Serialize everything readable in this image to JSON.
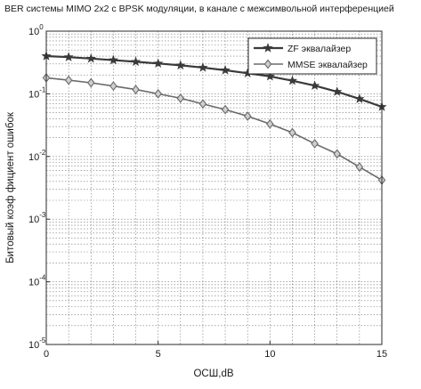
{
  "chart_data": {
    "type": "line",
    "title": "BER системы MIMO 2x2 с BPSK модуляции, в канале с межсимвольной интерференцией",
    "xlabel": "ОСШ,dB",
    "ylabel": "Битовый коэф фициент ошибок",
    "xlim": [
      0,
      15
    ],
    "ylim": [
      1e-05,
      1
    ],
    "yscale": "log",
    "grid": true,
    "legend_position": "top-right",
    "x_ticks": [
      0,
      5,
      10,
      15
    ],
    "y_ticks": [
      {
        "value": 1,
        "base": "10",
        "exp": "0"
      },
      {
        "value": 0.1,
        "base": "10",
        "exp": "-1"
      },
      {
        "value": 0.01,
        "base": "10",
        "exp": "-2"
      },
      {
        "value": 0.001,
        "base": "10",
        "exp": "-3"
      },
      {
        "value": 0.0001,
        "base": "10",
        "exp": "-4"
      },
      {
        "value": 1e-05,
        "base": "10",
        "exp": "-5"
      }
    ],
    "x": [
      0,
      1,
      2,
      3,
      4,
      5,
      6,
      7,
      8,
      9,
      10,
      11,
      12,
      13,
      14,
      15
    ],
    "series": [
      {
        "name": "ZF эквалайзер",
        "marker": "star",
        "color": "#3a3a3a",
        "values": [
          0.4,
          0.385,
          0.365,
          0.345,
          0.325,
          0.305,
          0.285,
          0.262,
          0.238,
          0.213,
          0.19,
          0.162,
          0.135,
          0.108,
          0.083,
          0.062
        ]
      },
      {
        "name": "MMSE эквалайзер",
        "marker": "diamond",
        "color": "#6a6a6a",
        "values": [
          0.18,
          0.165,
          0.15,
          0.133,
          0.117,
          0.1,
          0.085,
          0.069,
          0.056,
          0.044,
          0.033,
          0.024,
          0.016,
          0.011,
          0.0068,
          0.0042
        ]
      }
    ]
  }
}
